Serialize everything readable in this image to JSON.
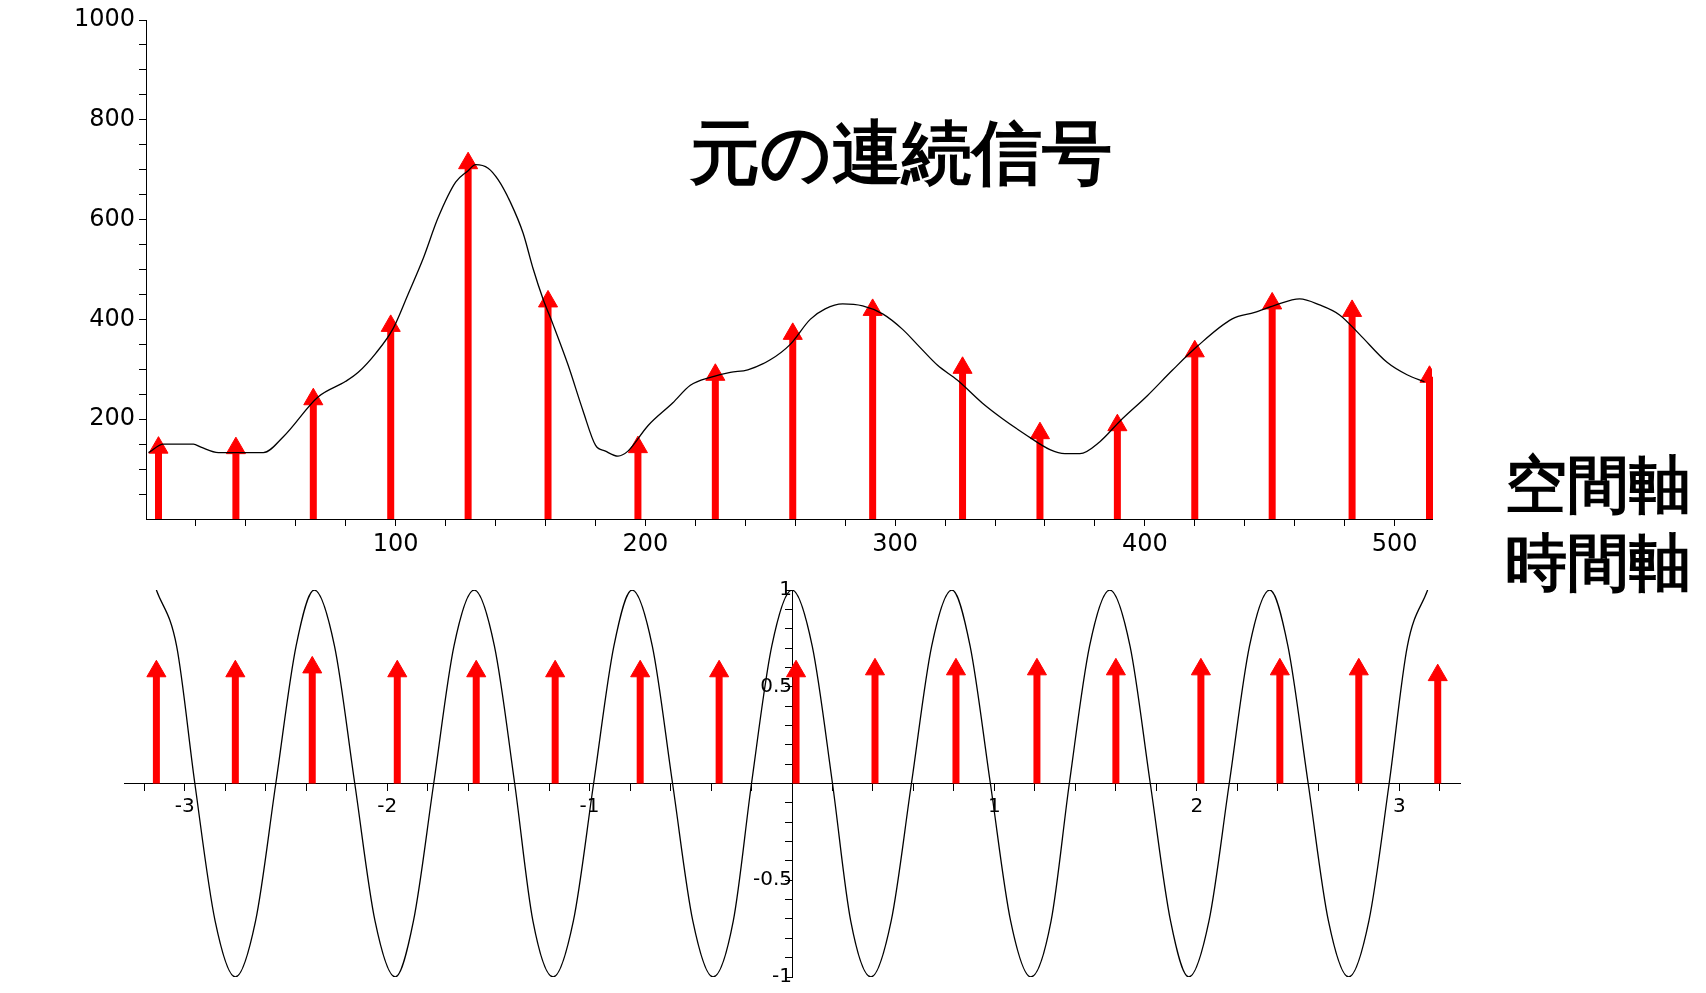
{
  "chart_data": [
    {
      "type": "line",
      "title": "元の連続信号",
      "xlabel": "空間軸",
      "xlim": [
        0,
        515
      ],
      "ylim": [
        0,
        1000
      ],
      "xticks": [
        {
          "value": 20,
          "label": null
        },
        {
          "value": 40,
          "label": null
        },
        {
          "value": 60,
          "label": null
        },
        {
          "value": 80,
          "label": null
        },
        100,
        {
          "value": 120,
          "label": null
        },
        {
          "value": 140,
          "label": null
        },
        {
          "value": 160,
          "label": null
        },
        {
          "value": 180,
          "label": null
        },
        200,
        {
          "value": 220,
          "label": null
        },
        {
          "value": 240,
          "label": null
        },
        {
          "value": 260,
          "label": null
        },
        {
          "value": 280,
          "label": null
        },
        300,
        {
          "value": 320,
          "label": null
        },
        {
          "value": 340,
          "label": null
        },
        {
          "value": 360,
          "label": null
        },
        {
          "value": 380,
          "label": null
        },
        400,
        {
          "value": 420,
          "label": null
        },
        {
          "value": 440,
          "label": null
        },
        {
          "value": 460,
          "label": null
        },
        {
          "value": 480,
          "label": null
        },
        500
      ],
      "yticks": [
        {
          "value": 50,
          "label": null
        },
        {
          "value": 100,
          "label": null
        },
        {
          "value": 150,
          "label": null
        },
        200,
        {
          "value": 250,
          "label": null
        },
        {
          "value": 300,
          "label": null
        },
        {
          "value": 350,
          "label": null
        },
        400,
        {
          "value": 450,
          "label": null
        },
        {
          "value": 500,
          "label": null
        },
        {
          "value": 550,
          "label": null
        },
        600,
        {
          "value": 650,
          "label": null
        },
        {
          "value": 700,
          "label": null
        },
        {
          "value": 750,
          "label": null
        },
        800,
        {
          "value": 850,
          "label": null
        },
        {
          "value": 900,
          "label": null
        },
        {
          "value": 950,
          "label": null
        },
        1000
      ],
      "series": [
        {
          "type": "line",
          "color": "#000000",
          "x": [
            1,
            7,
            19,
            22,
            29,
            47,
            55,
            69,
            80,
            85,
            92,
            99,
            105,
            111,
            117,
            124,
            129,
            132,
            137,
            141,
            146,
            151,
            155,
            159,
            163,
            169,
            175,
            180,
            184,
            189,
            193,
            201,
            211,
            218,
            226,
            234,
            241,
            250,
            258,
            266,
            272,
            279,
            287,
            295,
            303,
            309,
            317,
            325,
            335,
            343,
            352,
            362,
            368,
            374,
            382,
            390,
            401,
            411,
            421,
            435,
            444,
            452,
            462,
            470,
            478,
            486,
            497,
            505,
            512
          ],
          "values": [
            133,
            150,
            150,
            144,
            133,
            133,
            165,
            245,
            276,
            294,
            332,
            382,
            451,
            522,
            604,
            675,
            698,
            710,
            703,
            680,
            634,
            573,
            502,
            441,
            390,
            309,
            217,
            148,
            136,
            126,
            136,
            187,
            233,
            268,
            284,
            294,
            299,
            319,
            350,
            400,
            421,
            431,
            427,
            411,
            380,
            349,
            308,
            278,
            232,
            201,
            170,
            139,
            131,
            131,
            155,
            196,
            247,
            298,
            346,
            401,
            414,
            428,
            441,
            429,
            409,
            370,
            314,
            289,
            275
          ]
        },
        {
          "type": "lollipop",
          "color": "#ff0000",
          "marker": "triangle",
          "x": [
            5,
            36,
            67,
            98,
            129,
            161,
            197,
            228,
            259,
            291,
            327,
            358,
            389,
            420,
            451,
            483,
            514
          ],
          "values": [
            143,
            142,
            240,
            387,
            713,
            436,
            144,
            289,
            371,
            419,
            303,
            172,
            188,
            336,
            432,
            417,
            285
          ]
        }
      ]
    },
    {
      "type": "line",
      "xlabel": "時間軸",
      "xlim": [
        -3.3,
        3.3
      ],
      "ylim": [
        -1,
        1
      ],
      "xticks": [
        {
          "value": -3.2,
          "label": null
        },
        -3,
        {
          "value": -2.8,
          "label": null
        },
        {
          "value": -2.6,
          "label": null
        },
        {
          "value": -2.4,
          "label": null
        },
        {
          "value": -2.2,
          "label": null
        },
        -2,
        {
          "value": -1.8,
          "label": null
        },
        {
          "value": -1.6,
          "label": null
        },
        {
          "value": -1.4,
          "label": null
        },
        {
          "value": -1.2,
          "label": null
        },
        -1,
        {
          "value": -0.8,
          "label": null
        },
        {
          "value": -0.6,
          "label": null
        },
        {
          "value": -0.4,
          "label": null
        },
        {
          "value": -0.2,
          "label": null
        },
        {
          "value": 0.2,
          "label": null
        },
        {
          "value": 0.4,
          "label": null
        },
        {
          "value": 0.6,
          "label": null
        },
        {
          "value": 0.8,
          "label": null
        },
        1,
        {
          "value": 1.2,
          "label": null
        },
        {
          "value": 1.4,
          "label": null
        },
        {
          "value": 1.6,
          "label": null
        },
        {
          "value": 1.8,
          "label": null
        },
        2,
        {
          "value": 2.2,
          "label": null
        },
        {
          "value": 2.4,
          "label": null
        },
        {
          "value": 2.6,
          "label": null
        },
        {
          "value": 2.8,
          "label": null
        },
        3,
        {
          "value": 3.2,
          "label": null
        }
      ],
      "yticks": [
        -1,
        {
          "value": -0.9,
          "label": null
        },
        {
          "value": -0.8,
          "label": null
        },
        {
          "value": -0.7,
          "label": null
        },
        {
          "value": -0.6,
          "label": null
        },
        -0.5,
        {
          "value": -0.4,
          "label": null
        },
        {
          "value": -0.3,
          "label": null
        },
        {
          "value": -0.2,
          "label": null
        },
        {
          "value": -0.1,
          "label": null
        },
        {
          "value": 0.1,
          "label": null
        },
        {
          "value": 0.2,
          "label": null
        },
        {
          "value": 0.3,
          "label": null
        },
        {
          "value": 0.4,
          "label": null
        },
        0.5,
        {
          "value": 0.6,
          "label": null
        },
        {
          "value": 0.7,
          "label": null
        },
        {
          "value": 0.8,
          "label": null
        },
        {
          "value": 0.9,
          "label": null
        },
        1
      ],
      "series": [
        {
          "type": "line",
          "color": "#000000",
          "x": [
            -3.14,
            -3.04,
            -2.95,
            -2.85,
            -2.75,
            -2.65,
            -2.55,
            -2.45,
            -2.36,
            -2.26,
            -2.16,
            -2.06,
            -1.96,
            -1.87,
            -1.77,
            -1.67,
            -1.57,
            -1.47,
            -1.37,
            -1.28,
            -1.18,
            -1.08,
            -0.98,
            -0.88,
            -0.79,
            -0.69,
            -0.59,
            -0.49,
            -0.39,
            -0.29,
            -0.2,
            -0.1,
            0,
            0.1,
            0.2,
            0.29,
            0.39,
            0.49,
            0.59,
            0.69,
            0.79,
            0.88,
            0.98,
            1.08,
            1.18,
            1.28,
            1.37,
            1.47,
            1.57,
            1.67,
            1.77,
            1.87,
            1.96,
            2.06,
            2.16,
            2.26,
            2.36,
            2.45,
            2.55,
            2.65,
            2.75,
            2.85,
            2.95,
            3.04,
            3.14
          ],
          "values": [
            1,
            0.71,
            0,
            -0.71,
            -1,
            -0.71,
            0,
            0.71,
            1,
            0.71,
            0,
            -0.71,
            -1,
            -0.71,
            0,
            0.71,
            1,
            0.71,
            0,
            -0.71,
            -1,
            -0.71,
            0,
            0.71,
            1,
            0.71,
            0,
            -0.71,
            -1,
            -0.71,
            0,
            0.71,
            1,
            0.71,
            0,
            -0.71,
            -1,
            -0.71,
            0,
            0.71,
            1,
            0.71,
            0,
            -0.71,
            -1,
            -0.71,
            0,
            0.71,
            1,
            0.71,
            0,
            -0.71,
            -1,
            -0.71,
            0,
            0.71,
            1,
            0.71,
            0,
            -0.71,
            -1,
            -0.71,
            0,
            0.71,
            1
          ]
        },
        {
          "type": "lollipop",
          "color": "#ff0000",
          "marker": "triangle",
          "x": [
            -3.14,
            -2.75,
            -2.37,
            -1.95,
            -1.56,
            -1.17,
            -0.75,
            -0.36,
            0.02,
            0.41,
            0.81,
            1.21,
            1.6,
            2.02,
            2.41,
            2.8,
            3.19
          ],
          "values": [
            0.58,
            0.58,
            0.6,
            0.58,
            0.58,
            0.58,
            0.58,
            0.58,
            0.58,
            0.59,
            0.59,
            0.59,
            0.59,
            0.59,
            0.59,
            0.59,
            0.56
          ]
        }
      ]
    }
  ]
}
